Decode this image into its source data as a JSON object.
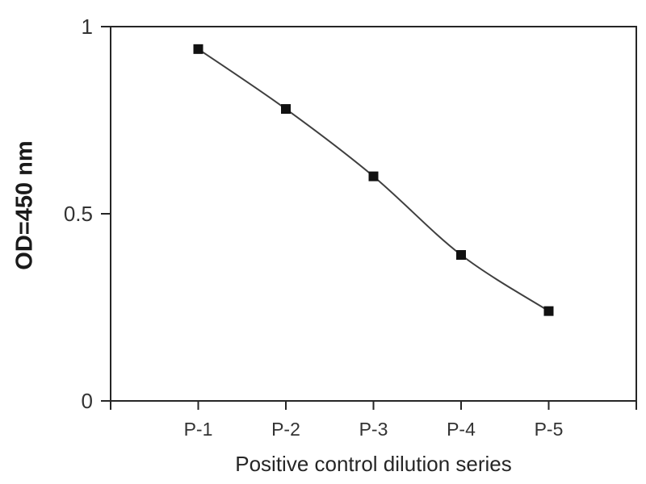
{
  "figure": {
    "background": "#ffffff"
  },
  "chart_data": {
    "type": "line",
    "title": "",
    "xlabel": "Positive control dilution series",
    "ylabel": "OD=450 nm",
    "categories": [
      "P-1",
      "P-2",
      "P-3",
      "P-4",
      "P-5"
    ],
    "values": [
      0.94,
      0.78,
      0.6,
      0.39,
      0.24
    ],
    "ylim": [
      0,
      1
    ],
    "yticks": [
      {
        "value": 0,
        "label": "0"
      },
      {
        "value": 0.5,
        "label": "0.5"
      },
      {
        "value": 1,
        "label": "1"
      }
    ],
    "grid": false,
    "legend": "none",
    "smooth_line": true,
    "marker": "square",
    "line_color": "#3f3f3f",
    "marker_color": "#111111",
    "axis_color": "#262626",
    "tick_label_color": "#333333"
  }
}
